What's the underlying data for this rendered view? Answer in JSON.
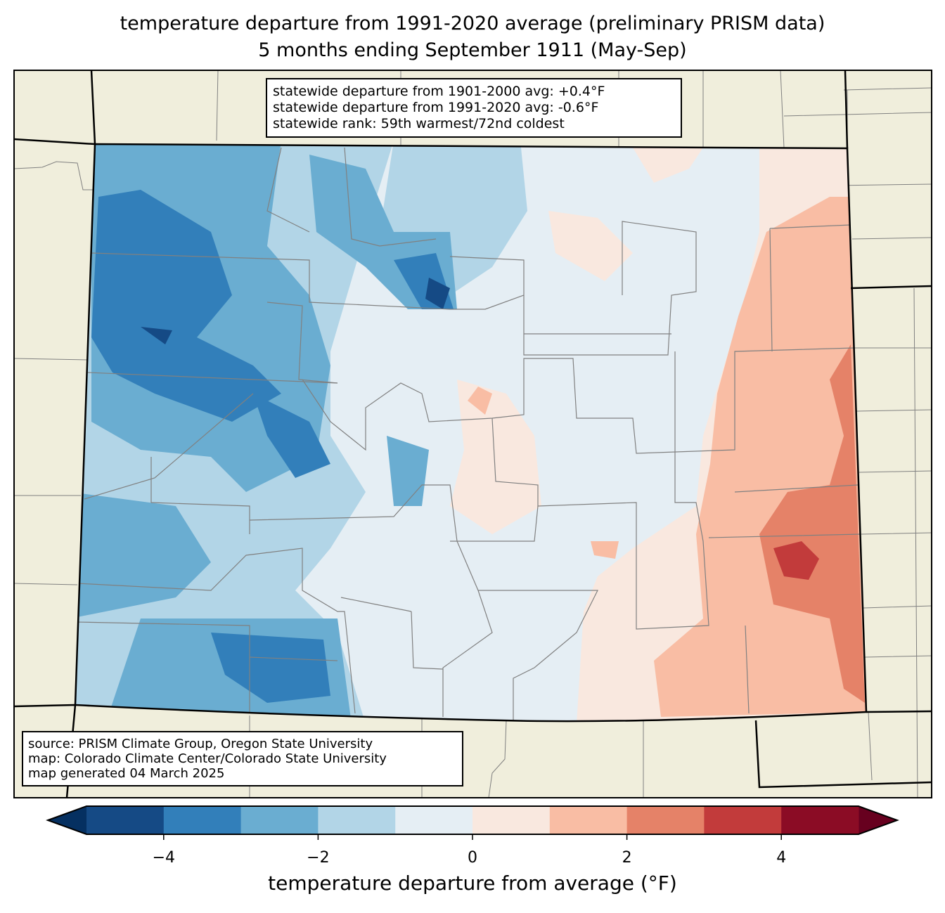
{
  "title": {
    "line1": "temperature departure from 1991-2020 average (preliminary PRISM data)",
    "line2": "5 months ending September 1911 (May-Sep)"
  },
  "info_box": {
    "line1": "statewide departure from 1901-2000 avg: +0.4°F",
    "line2": "statewide departure from 1991-2020 avg: -0.6°F",
    "line3": "statewide rank: 59th warmest/72nd coldest"
  },
  "source_box": {
    "line1": "source: PRISM Climate Group, Oregon State University",
    "line2": "map: Colorado Climate Center/Colorado State University",
    "line3": "map generated 04 March 2025"
  },
  "colorbar": {
    "label": "temperature departure from average (°F)",
    "levels": [
      -5,
      -4,
      -3,
      -2,
      -1,
      0,
      1,
      2,
      3,
      4,
      5
    ],
    "colors": [
      "#154a85",
      "#327fba",
      "#6aadd1",
      "#b2d5e7",
      "#e5eef4",
      "#f9e8df",
      "#f9bda4",
      "#e58268",
      "#c23b3b",
      "#8b0c25"
    ],
    "extend_low_color": "#053061",
    "extend_high_color": "#67001f",
    "ticks": [
      "−4",
      "−2",
      "0",
      "2",
      "4"
    ]
  },
  "map_colors": {
    "land": "#f0eedc",
    "county": "#808080",
    "border": "#000000"
  }
}
